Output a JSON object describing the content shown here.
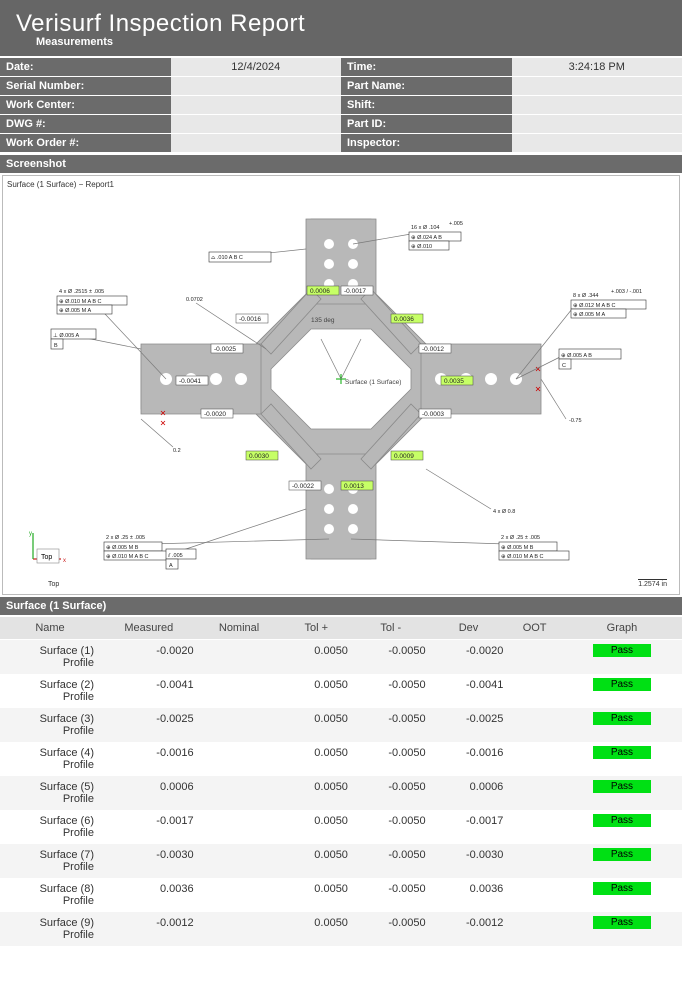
{
  "header": {
    "title": "Verisurf Inspection Report",
    "subtitle": "Measurements"
  },
  "meta": {
    "rows": [
      {
        "l1": "Date:",
        "v1": "12/4/2024",
        "l2": "Time:",
        "v2": "3:24:18 PM"
      },
      {
        "l1": "Serial Number:",
        "v1": "",
        "l2": "Part Name:",
        "v2": ""
      },
      {
        "l1": "Work Center:",
        "v1": "",
        "l2": "Shift:",
        "v2": ""
      },
      {
        "l1": "DWG #:",
        "v1": "",
        "l2": "Part ID:",
        "v2": ""
      },
      {
        "l1": "Work Order #:",
        "v1": "",
        "l2": "Inspector:",
        "v2": ""
      }
    ]
  },
  "screenshot": {
    "section_label": "Screenshot",
    "caption": "Surface (1 Surface) − Report1",
    "center_label": "Surface (1 Surface)",
    "angle_label": "135 deg",
    "side_val": "-0.75",
    "r_val": "0.2",
    "top_dim": "0.0702",
    "scale_label": "1.2574 in",
    "axis_top": "Top",
    "measured": {
      "surface1": "-0.0020",
      "surface2": "-0.0041",
      "surface3": "-0.0025",
      "surface4": "-0.0016",
      "surface5": "0.0006",
      "surface6": "-0.0017",
      "surface7": "-0.0030",
      "surface8": "0.0036",
      "surface9": "-0.0012",
      "surface10": "0.0035",
      "surface11": "-0.0003",
      "surface12": "0.0009",
      "surface13": "0.0030",
      "surface14": "-0.0022",
      "surface15": "0.0013"
    },
    "callouts": {
      "top_holes": "16 x Ø .104",
      "top_tol": "+.005",
      "left_holes1": "4 x Ø .2515 ± .005",
      "right_holes": "8 x Ø .344",
      "right_tol": "+.003 / -.001",
      "bl_holes": "2 x Ø .25 ± .005",
      "br_holes": "2 x Ø .25 ± .005",
      "br_chamfer": "4 x Ø 0.8",
      "left_perp": "⊥ Ø.005 A",
      "left_b": "B",
      "bot_a": "A",
      "bot_par": "⫽ .005",
      "right_c": "C",
      "top_flat": "⌓ .010 A B C",
      "gd1": "⊕ Ø.010 M A B C",
      "gd2": "⊕ Ø.005 M A",
      "gd3": "⊕ Ø.024 A B",
      "gd4": "⊕ Ø.010",
      "gd5": "⊕ Ø.012 M A B C",
      "gd6": "⊕ Ø.005 M A",
      "gd7": "⊕ Ø.005 A B",
      "gd8": "⊕ Ø.005 M B",
      "gd9": "⊕ Ø.010 M A B C",
      "gd10": "⊕ Ø.005 M B",
      "gd11": "⊕ Ø.010 M A B C"
    }
  },
  "surface_table": {
    "section_label": "Surface (1 Surface)",
    "columns": [
      "Name",
      "Measured",
      "Nominal",
      "Tol +",
      "Tol -",
      "Dev",
      "OOT",
      "Graph"
    ],
    "pass_label": "Pass",
    "rows": [
      {
        "name": "Surface (1) Profile",
        "measured": "-0.0020",
        "nominal": "",
        "tolp": "0.0050",
        "toln": "-0.0050",
        "dev": "-0.0020",
        "oot": "",
        "graph": "Pass"
      },
      {
        "name": "Surface (2) Profile",
        "measured": "-0.0041",
        "nominal": "",
        "tolp": "0.0050",
        "toln": "-0.0050",
        "dev": "-0.0041",
        "oot": "",
        "graph": "Pass"
      },
      {
        "name": "Surface (3) Profile",
        "measured": "-0.0025",
        "nominal": "",
        "tolp": "0.0050",
        "toln": "-0.0050",
        "dev": "-0.0025",
        "oot": "",
        "graph": "Pass"
      },
      {
        "name": "Surface (4) Profile",
        "measured": "-0.0016",
        "nominal": "",
        "tolp": "0.0050",
        "toln": "-0.0050",
        "dev": "-0.0016",
        "oot": "",
        "graph": "Pass"
      },
      {
        "name": "Surface (5) Profile",
        "measured": "0.0006",
        "nominal": "",
        "tolp": "0.0050",
        "toln": "-0.0050",
        "dev": "0.0006",
        "oot": "",
        "graph": "Pass"
      },
      {
        "name": "Surface (6) Profile",
        "measured": "-0.0017",
        "nominal": "",
        "tolp": "0.0050",
        "toln": "-0.0050",
        "dev": "-0.0017",
        "oot": "",
        "graph": "Pass"
      },
      {
        "name": "Surface (7) Profile",
        "measured": "-0.0030",
        "nominal": "",
        "tolp": "0.0050",
        "toln": "-0.0050",
        "dev": "-0.0030",
        "oot": "",
        "graph": "Pass"
      },
      {
        "name": "Surface (8) Profile",
        "measured": "0.0036",
        "nominal": "",
        "tolp": "0.0050",
        "toln": "-0.0050",
        "dev": "0.0036",
        "oot": "",
        "graph": "Pass"
      },
      {
        "name": "Surface (9) Profile",
        "measured": "-0.0012",
        "nominal": "",
        "tolp": "0.0050",
        "toln": "-0.0050",
        "dev": "-0.0012",
        "oot": "",
        "graph": "Pass"
      }
    ]
  }
}
